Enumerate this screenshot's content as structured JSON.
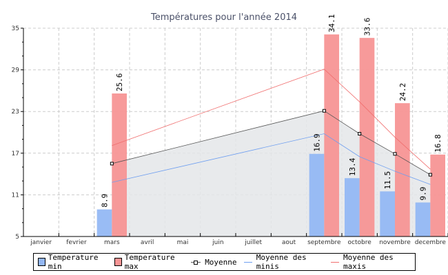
{
  "chart_data": {
    "type": "bar",
    "title": "Températures pour l'année 2014",
    "categories": [
      "janvier",
      "fevrier",
      "mars",
      "avril",
      "mai",
      "juin",
      "juillet",
      "aout",
      "septembre",
      "octobre",
      "novembre",
      "decembre"
    ],
    "ylim": [
      5,
      35
    ],
    "yticks": [
      5,
      11,
      17,
      23,
      29,
      35
    ],
    "grid": true,
    "series": [
      {
        "name": "Temperature min",
        "type": "bar",
        "color": "#94b8f4",
        "values": [
          null,
          null,
          8.9,
          null,
          null,
          null,
          null,
          null,
          16.9,
          13.4,
          11.5,
          9.9
        ],
        "labels": [
          "",
          "",
          "8.9",
          "",
          "",
          "",
          "",
          "",
          "16.9",
          "13.4",
          "11.5",
          "9.9"
        ]
      },
      {
        "name": "Temperature max",
        "type": "bar",
        "color": "#f79595",
        "values": [
          null,
          null,
          25.6,
          null,
          null,
          null,
          null,
          null,
          34.1,
          33.6,
          24.2,
          16.8
        ],
        "labels": [
          "",
          "",
          "25.6",
          "",
          "",
          "",
          "",
          "",
          "34.1",
          "33.6",
          "24.2",
          "16.8"
        ]
      },
      {
        "name": "Moyenne",
        "type": "line",
        "color": "#555555",
        "values": [
          null,
          null,
          15.5,
          null,
          null,
          null,
          null,
          null,
          23.1,
          19.8,
          16.9,
          13.9
        ]
      },
      {
        "name": "Moyenne des minis",
        "type": "line",
        "color": "#6d9ef0",
        "values": [
          null,
          null,
          12.8,
          null,
          null,
          null,
          null,
          null,
          19.8,
          16.5,
          14.4,
          12.5
        ]
      },
      {
        "name": "Moyenne des maxis",
        "type": "line",
        "color": "#f06d6d",
        "values": [
          null,
          null,
          18.1,
          null,
          null,
          null,
          null,
          null,
          29.1,
          24.4,
          19.3,
          14.7
        ]
      }
    ],
    "legend": "bottom"
  }
}
